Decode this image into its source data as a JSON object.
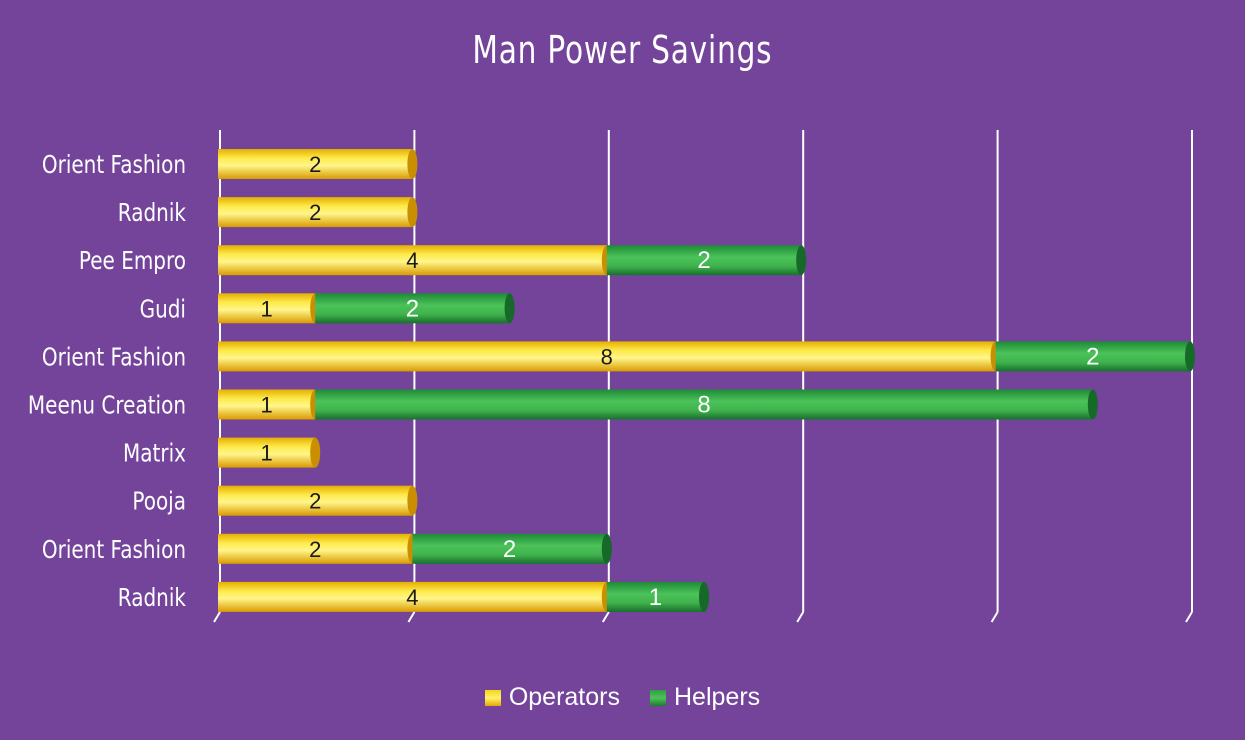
{
  "chart_data": {
    "type": "bar",
    "orientation": "horizontal",
    "stacked": true,
    "title": "Man Power Savings",
    "xlabel": "",
    "ylabel": "",
    "xlim": [
      0,
      10
    ],
    "grid": true,
    "legend_position": "bottom",
    "categories": [
      "Orient Fashion",
      "Radnik",
      "Pee Empro",
      "Gudi",
      "Orient Fashion",
      "Meenu Creation",
      "Matrix",
      "Pooja",
      "Orient Fashion",
      "Radnik"
    ],
    "series": [
      {
        "name": "Operators",
        "color": "#f6d41a",
        "values": [
          2,
          2,
          4,
          1,
          8,
          1,
          1,
          2,
          2,
          4
        ]
      },
      {
        "name": "Helpers",
        "color": "#3db54a",
        "values": [
          0,
          0,
          2,
          2,
          2,
          8,
          0,
          0,
          2,
          1
        ]
      }
    ]
  },
  "colors": {
    "background": "#73449a",
    "gridline": "#ffffff",
    "operators_fill": "#f6d41a",
    "helpers_fill": "#3db54a"
  }
}
